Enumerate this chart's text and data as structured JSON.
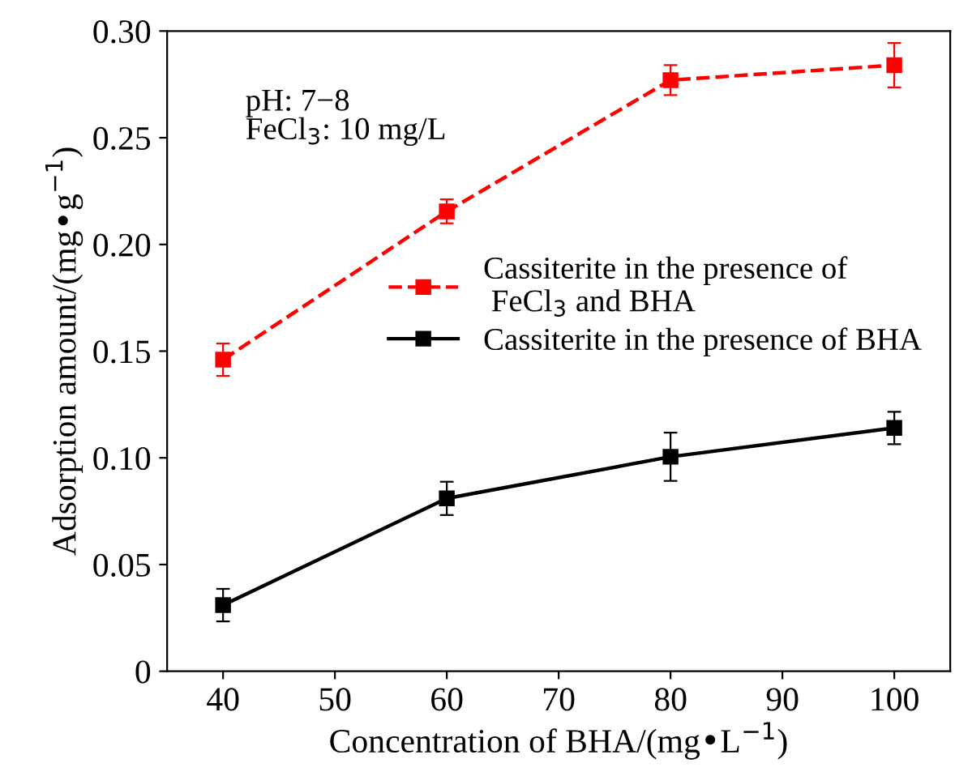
{
  "chart_data": {
    "type": "line",
    "xlabel": "Concentration of BHA/(mg•L$^{−1}$)",
    "ylabel": "Adsorption amount/(mg•g$^{−1}$)",
    "annotations": [
      "pH: 7−8\nFeCl$_{3}$: 10 mg/L"
    ],
    "x": [
      40,
      60,
      80,
      100
    ],
    "series": [
      {
        "name": "Cassiterite in the presence of\n FeCl$_{3}$ and BHA",
        "color": "#ff0000",
        "line_style": "dashed",
        "marker": "square",
        "values": [
          0.146,
          0.2155,
          0.277,
          0.284
        ],
        "errors": [
          0.0076,
          0.0056,
          0.007,
          0.0104
        ]
      },
      {
        "name": "Cassiterite in the presence of BHA",
        "color": "#000000",
        "line_style": "solid",
        "marker": "square",
        "values": [
          0.031,
          0.081,
          0.1005,
          0.114
        ],
        "errors": [
          0.0076,
          0.0078,
          0.0113,
          0.0076
        ]
      }
    ],
    "xlim": [
      35,
      105
    ],
    "xticks": [
      40,
      50,
      60,
      70,
      80,
      90,
      100
    ],
    "ylim": [
      0,
      0.3
    ],
    "yticks": [
      0,
      0.05,
      {
        "value": 0.1,
        "label": "0.10"
      },
      0.15,
      {
        "value": 0.2,
        "label": "0.20"
      },
      0.25,
      {
        "value": 0.3,
        "label": "0.30"
      }
    ],
    "grid": false,
    "legend": "right"
  }
}
